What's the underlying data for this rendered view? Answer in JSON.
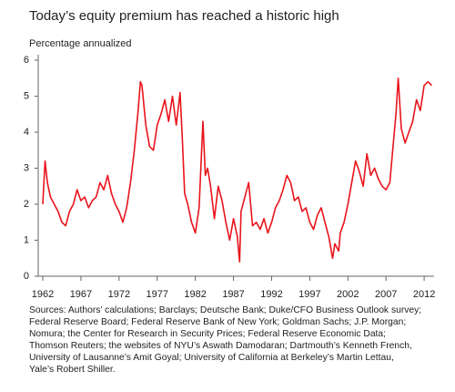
{
  "chart_data": {
    "type": "line",
    "title": "Today’s equity premium has reached a historic high",
    "y_label": "Percentage annualized",
    "color": "#e8141c",
    "x": [
      1962.0,
      1962.3,
      1962.6,
      1963,
      1963.5,
      1964,
      1964.5,
      1965,
      1965.5,
      1966,
      1966.5,
      1967,
      1967.5,
      1968,
      1968.5,
      1969,
      1969.5,
      1970,
      1970.5,
      1971,
      1971.5,
      1972,
      1972.5,
      1973,
      1973.5,
      1974,
      1974.5,
      1974.8,
      1975,
      1975.5,
      1976,
      1976.5,
      1977,
      1977.5,
      1978,
      1978.5,
      1979,
      1979.5,
      1980,
      1980.3,
      1980.6,
      1981,
      1981.5,
      1982,
      1982.5,
      1982.8,
      1983,
      1983.3,
      1983.6,
      1984,
      1984.5,
      1985,
      1985.5,
      1986,
      1986.5,
      1987,
      1987.5,
      1987.8,
      1988,
      1988.5,
      1989,
      1989.5,
      1990,
      1990.5,
      1991,
      1991.5,
      1992,
      1992.5,
      1993,
      1993.5,
      1994,
      1994.5,
      1995,
      1995.5,
      1996,
      1996.5,
      1997,
      1997.5,
      1998,
      1998.5,
      1999,
      1999.5,
      2000,
      2000.3,
      2000.8,
      2001,
      2001.5,
      2002,
      2002.5,
      2003,
      2003.5,
      2004,
      2004.5,
      2005,
      2005.5,
      2006,
      2006.5,
      2007,
      2007.5,
      2008,
      2008.3,
      2008.6,
      2009,
      2009.5,
      2010,
      2010.5,
      2011,
      2011.5,
      2012,
      2012.5,
      2013
    ],
    "values": [
      2.0,
      3.2,
      2.6,
      2.2,
      2.0,
      1.8,
      1.5,
      1.4,
      1.8,
      2.0,
      2.4,
      2.1,
      2.2,
      1.9,
      2.1,
      2.2,
      2.6,
      2.4,
      2.8,
      2.3,
      2.0,
      1.8,
      1.5,
      1.9,
      2.6,
      3.5,
      4.6,
      5.4,
      5.3,
      4.2,
      3.6,
      3.5,
      4.2,
      4.5,
      4.9,
      4.3,
      5.0,
      4.2,
      5.1,
      3.8,
      2.3,
      2.0,
      1.5,
      1.2,
      1.9,
      3.4,
      4.3,
      2.8,
      3.0,
      2.5,
      1.6,
      2.5,
      2.1,
      1.5,
      1.0,
      1.6,
      1.1,
      0.4,
      1.8,
      2.2,
      2.6,
      1.4,
      1.5,
      1.3,
      1.6,
      1.2,
      1.5,
      1.9,
      2.1,
      2.4,
      2.8,
      2.6,
      2.1,
      2.2,
      1.8,
      1.9,
      1.5,
      1.3,
      1.7,
      1.9,
      1.5,
      1.1,
      0.5,
      0.9,
      0.7,
      1.2,
      1.5,
      2.0,
      2.6,
      3.2,
      2.9,
      2.5,
      3.4,
      2.8,
      3.0,
      2.7,
      2.5,
      2.4,
      2.6,
      3.8,
      4.5,
      5.5,
      4.1,
      3.7,
      4.0,
      4.3,
      4.9,
      4.6,
      5.3,
      5.4,
      5.3
    ],
    "xlim": [
      1961.4,
      2013.3
    ],
    "xticks": [
      1962,
      1967,
      1972,
      1977,
      1982,
      1987,
      1992,
      1997,
      2002,
      2007,
      2012
    ],
    "ylim": [
      0,
      6
    ],
    "yticks": [
      0,
      1,
      2,
      3,
      4,
      5,
      6
    ],
    "sources": [
      "Sources: Authors’ calculations; Barclays; Deutsche Bank; Duke/CFO Business Outlook survey;",
      "Federal Reserve Board; Federal Reserve Bank of New York; Goldman Sachs; J.P. Morgan;",
      "Nomura; the Center for Research in Security Prices; Federal Reserve Economic Data;",
      "Thomson Reuters; the websites of NYU’s Aswath Damodaran; Dartmouth’s Kenneth French,",
      "University of Lausanne’s Amit Goyal; University of California at Berkeley’s Martin Lettau,",
      "Yale’s Robert Shiller."
    ]
  }
}
